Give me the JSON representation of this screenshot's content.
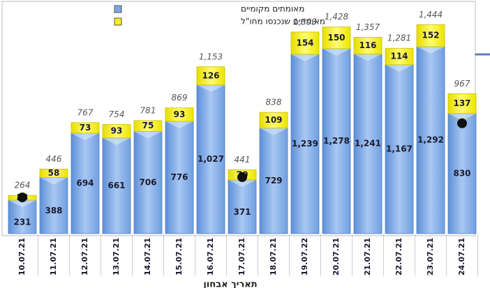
{
  "chart_data": {
    "type": "stacked-bar",
    "categories": [
      "10.07.21",
      "11.07.21",
      "12.07.21",
      "13.07.21",
      "14.07.21",
      "15.07.21",
      "16.07.21",
      "17.07.21",
      "18.07.21",
      "19.07.22",
      "20.07.21",
      "21.07.21",
      "22.07.21",
      "23.07.21",
      "24.07.21"
    ],
    "series": [
      {
        "name": "מאומתים מקומיים",
        "color": "#7aa7e6",
        "values": [
          231,
          388,
          694,
          661,
          706,
          776,
          1027,
          371,
          729,
          1239,
          1278,
          1241,
          1167,
          1292,
          830
        ],
        "value_labels": [
          "231",
          "388",
          "694",
          "661",
          "706",
          "776",
          "1,027",
          "371",
          "729",
          "1,239",
          "1,278",
          "1,241",
          "1,167",
          "1,292",
          "830"
        ]
      },
      {
        "name": "מאומתים שנכנסו מחו\"ל",
        "color": "#f4ef1a",
        "values": [
          33,
          58,
          73,
          93,
          75,
          93,
          126,
          70,
          109,
          154,
          150,
          116,
          114,
          152,
          137
        ]
      }
    ],
    "totals": [
      264,
      446,
      767,
      754,
      781,
      869,
      1153,
      441,
      838,
      1393,
      1428,
      1357,
      1281,
      1444,
      967
    ],
    "total_labels": [
      "264",
      "446",
      "767",
      "754",
      "781",
      "869",
      "1,153",
      "441",
      "838",
      "1,393",
      "1,428",
      "1,357",
      "1,281",
      "1,444",
      "967"
    ],
    "x_label": "תאריך אבחון",
    "ylim": [
      0,
      1600
    ]
  }
}
